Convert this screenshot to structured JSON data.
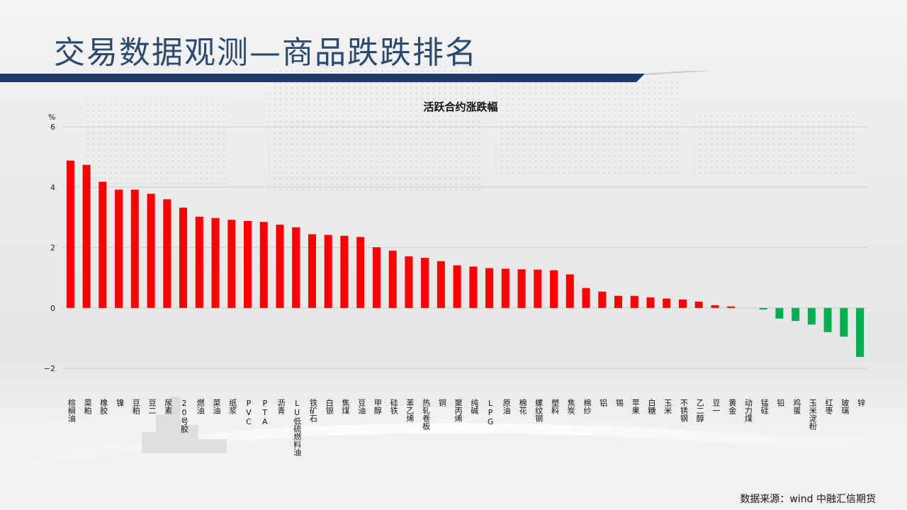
{
  "page": {
    "title": "交易数据观测—商品跌跌排名",
    "source": "数据来源：wind 中融汇信期货"
  },
  "colors": {
    "title": "#2c4a6e",
    "up": "#ff0000",
    "down": "#00b050",
    "title_bar": "#1f3a66",
    "grid": "#d0d0d0"
  },
  "chart_data": {
    "type": "bar",
    "title": "活跃合约涨跌幅",
    "ylabel": "%",
    "ylim": [
      -2,
      6
    ],
    "yticks": [
      6,
      4,
      2,
      0,
      -2
    ],
    "grid": true,
    "categories": [
      "棕榈油",
      "菜粕",
      "橡胶",
      "镍",
      "豆粕",
      "豆二",
      "尿素",
      "20号胶",
      "燃油",
      "菜油",
      "纸浆",
      "PVC",
      "PTA",
      "沥青",
      "LU低硫燃料油",
      "铁矿石",
      "白银",
      "焦煤",
      "豆油",
      "甲醇",
      "硅铁",
      "苯乙烯",
      "热轧卷板",
      "铜",
      "聚丙烯",
      "纯碱",
      "LPG",
      "原油",
      "棉花",
      "螺纹钢",
      "塑料",
      "焦炭",
      "棉纱",
      "铝",
      "锡",
      "苹果",
      "白糖",
      "玉米",
      "不锈钢",
      "乙二醇",
      "豆一",
      "黄金",
      "动力煤",
      "锰硅",
      "铅",
      "鸡蛋",
      "玉米淀粉",
      "红枣",
      "玻璃",
      "锌"
    ],
    "values": [
      4.88,
      4.74,
      4.18,
      3.92,
      3.92,
      3.78,
      3.6,
      3.32,
      3.02,
      2.98,
      2.92,
      2.88,
      2.85,
      2.76,
      2.67,
      2.44,
      2.42,
      2.39,
      2.35,
      2.01,
      1.9,
      1.71,
      1.66,
      1.55,
      1.41,
      1.37,
      1.32,
      1.3,
      1.28,
      1.27,
      1.25,
      1.11,
      0.66,
      0.54,
      0.4,
      0.4,
      0.35,
      0.31,
      0.28,
      0.21,
      0.09,
      0.05,
      0.0,
      -0.05,
      -0.35,
      -0.43,
      -0.55,
      -0.8,
      -0.95,
      -1.62
    ]
  }
}
